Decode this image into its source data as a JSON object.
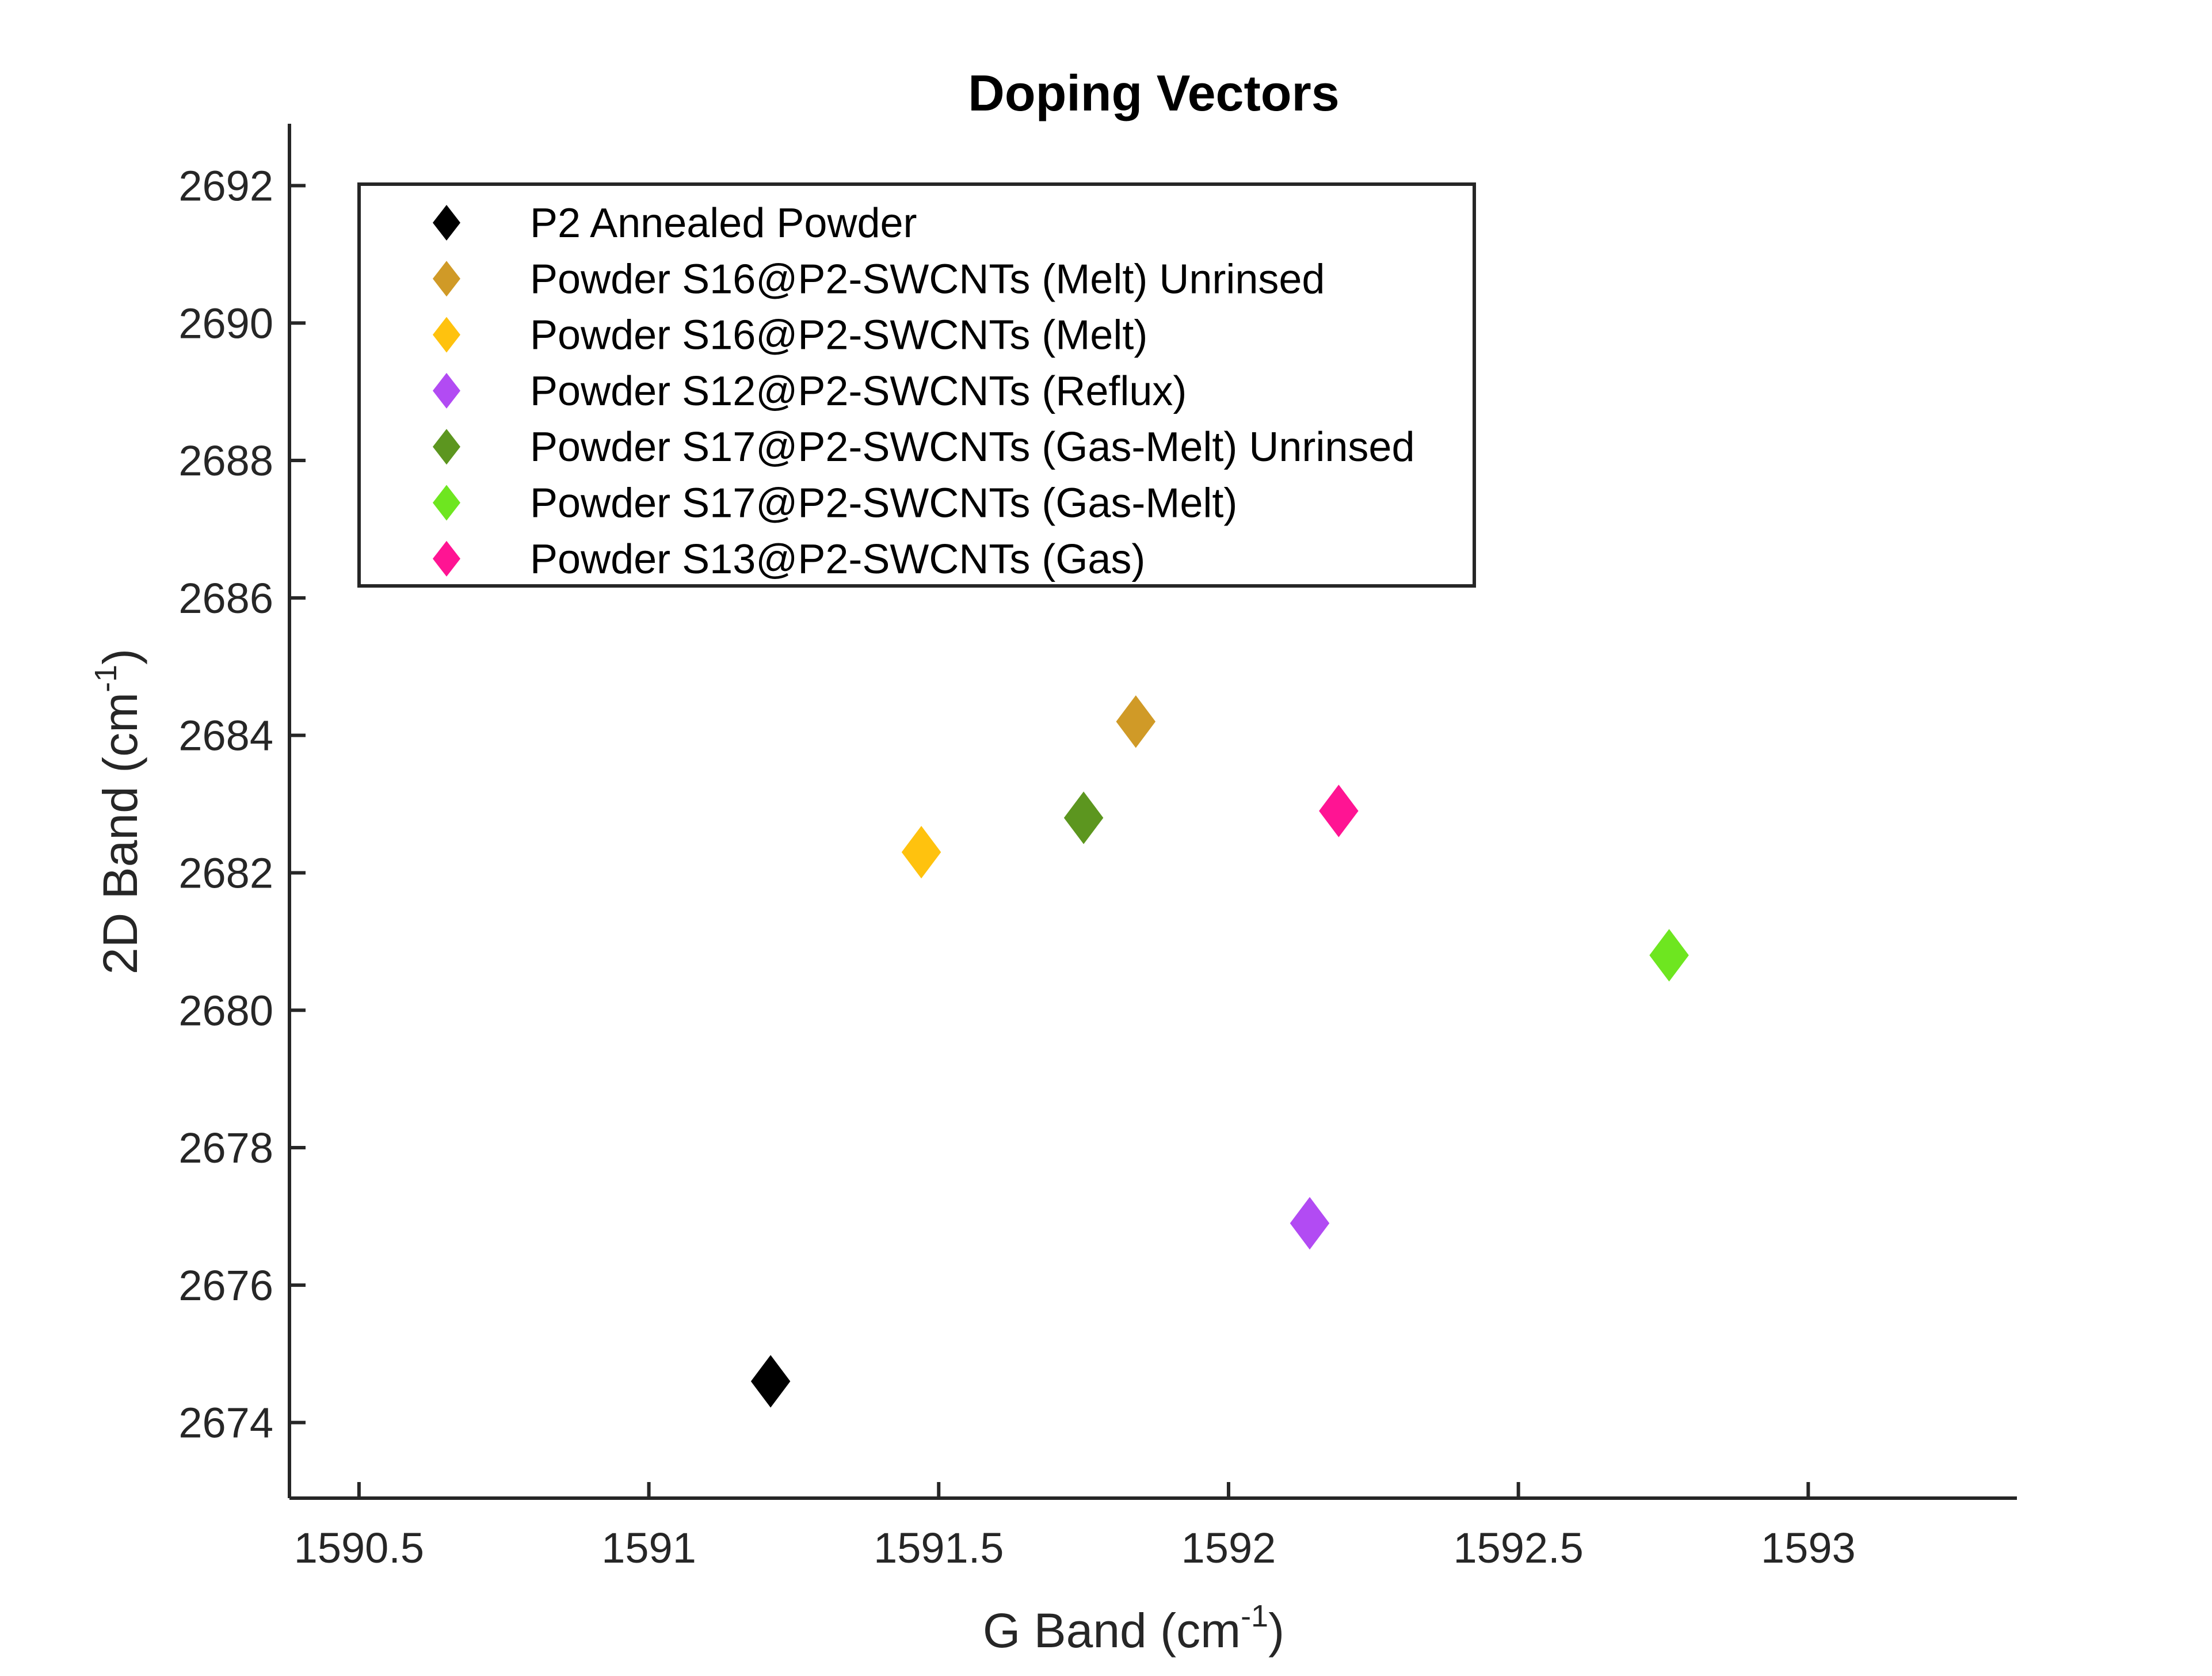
{
  "chart_data": {
    "type": "scatter",
    "title": "Doping Vectors",
    "xlabel": {
      "main": "G Band (cm",
      "sup": "-1",
      "close": ")"
    },
    "ylabel": {
      "main": "2D Band (cm",
      "sup": "-1",
      "close": ")"
    },
    "xlim": [
      1590.38,
      1593.36
    ],
    "ylim": [
      2672.9,
      2692.9
    ],
    "xticks": [
      1590.5,
      1591,
      1591.5,
      1592,
      1592.5,
      1593
    ],
    "xtick_labels": [
      "1590.5",
      "1591",
      "1591.5",
      "1592",
      "1592.5",
      "1593"
    ],
    "yticks": [
      2674,
      2676,
      2678,
      2680,
      2682,
      2684,
      2686,
      2688,
      2690,
      2692
    ],
    "ytick_labels": [
      "2674",
      "2676",
      "2678",
      "2680",
      "2682",
      "2684",
      "2686",
      "2688",
      "2690",
      "2692"
    ],
    "marker": "diamond",
    "legend_position": "top-left",
    "grid": false,
    "series": [
      {
        "name": "P2 Annealed Powder",
        "color": "#000000",
        "x": 1591.21,
        "y": 2674.6
      },
      {
        "name": "Powder S16@P2-SWCNTs (Melt) Unrinsed",
        "color": "#D09A27",
        "x": 1591.84,
        "y": 2684.2
      },
      {
        "name": "Powder S16@P2-SWCNTs (Melt)",
        "color": "#FFC20E",
        "x": 1591.47,
        "y": 2682.3
      },
      {
        "name": "Powder S12@P2-SWCNTs (Reflux)",
        "color": "#B24BF3",
        "x": 1592.14,
        "y": 2676.9
      },
      {
        "name": "Powder S17@P2-SWCNTs (Gas-Melt) Unrinsed",
        "color": "#5C961F",
        "x": 1591.75,
        "y": 2682.8
      },
      {
        "name": "Powder S17@P2-SWCNTs (Gas-Melt)",
        "color": "#6EE620",
        "x": 1592.76,
        "y": 2680.8
      },
      {
        "name": "Powder S13@P2-SWCNTs (Gas)",
        "color": "#FF1493",
        "x": 1592.19,
        "y": 2682.9
      }
    ]
  }
}
